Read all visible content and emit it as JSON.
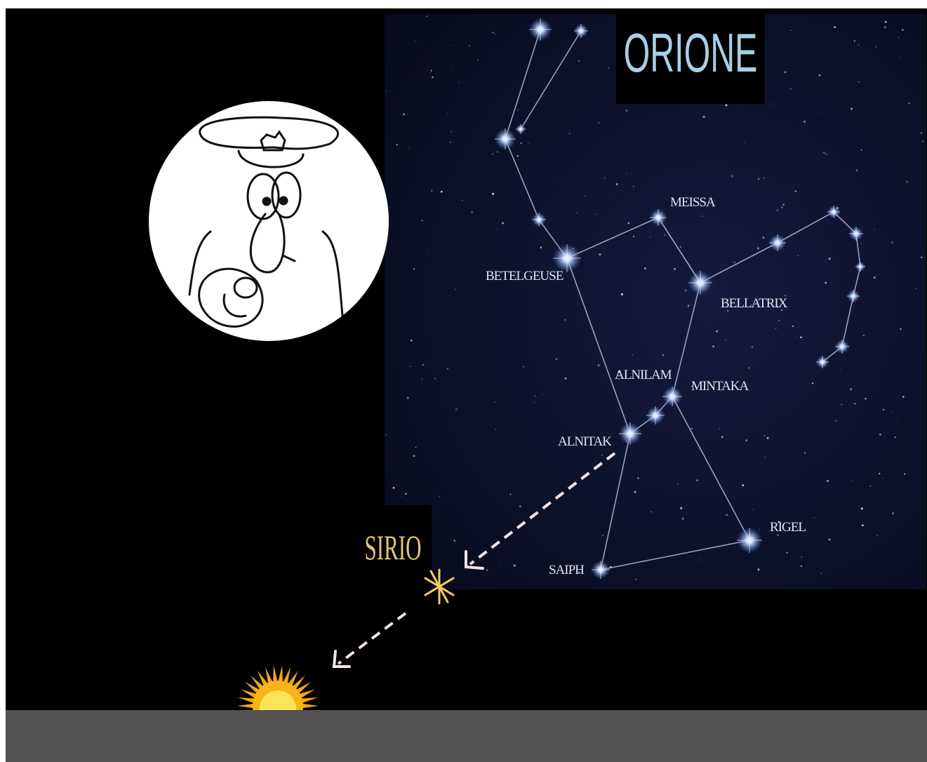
{
  "title": "ORIONE",
  "star_labels": [
    "MEISSA",
    "BETELGEUSE",
    "BELLATRIX",
    "ALNILAM",
    "MINTAKA",
    "ALNITAK",
    "RIGEL",
    "SAIPH"
  ],
  "sirius_label": "SIRIO"
}
